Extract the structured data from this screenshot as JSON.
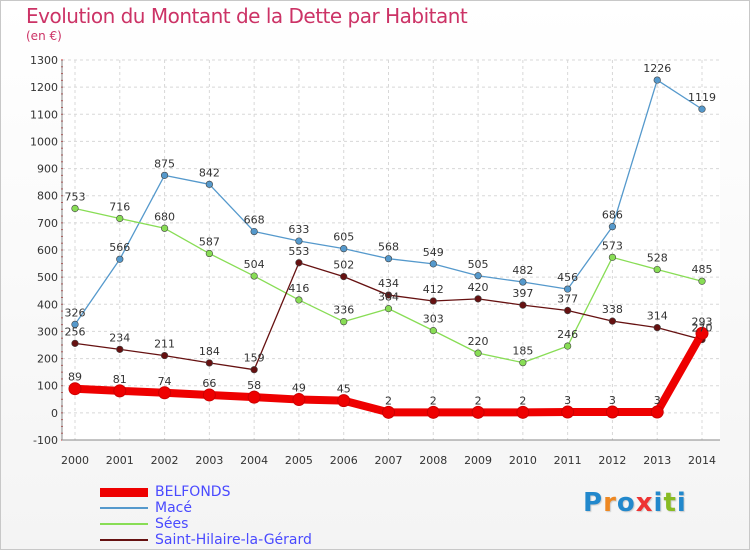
{
  "title": "Evolution du Montant de la Dette par Habitant",
  "subtitle": "(en €)",
  "logo": "Proxiti",
  "chart_data": {
    "type": "line",
    "x": [
      "2000",
      "2001",
      "2002",
      "2003",
      "2004",
      "2005",
      "2006",
      "2007",
      "2008",
      "2009",
      "2010",
      "2011",
      "2012",
      "2013",
      "2014"
    ],
    "ylim": [
      -100,
      1300
    ],
    "yticks": [
      -100,
      0,
      100,
      200,
      300,
      400,
      500,
      600,
      700,
      800,
      900,
      1000,
      1100,
      1200,
      1300
    ],
    "grid": true,
    "legend": "bottom-left",
    "series": [
      {
        "name": "BELFONDS",
        "color": "#ee0000",
        "values": [
          89,
          81,
          74,
          66,
          58,
          49,
          45,
          2,
          2,
          2,
          2,
          3,
          3,
          3,
          293
        ]
      },
      {
        "name": "Macé",
        "color": "#5599cc",
        "values": [
          326,
          566,
          875,
          842,
          668,
          633,
          605,
          568,
          549,
          505,
          482,
          456,
          686,
          1226,
          1119
        ]
      },
      {
        "name": "Sées",
        "color": "#88dd55",
        "values": [
          753,
          716,
          680,
          587,
          504,
          416,
          336,
          384,
          303,
          220,
          185,
          246,
          573,
          528,
          485
        ]
      },
      {
        "name": "Saint-Hilaire-la-Gérard",
        "color": "#661111",
        "values": [
          256,
          234,
          211,
          184,
          159,
          553,
          502,
          434,
          412,
          420,
          397,
          377,
          338,
          314,
          270
        ]
      }
    ]
  }
}
